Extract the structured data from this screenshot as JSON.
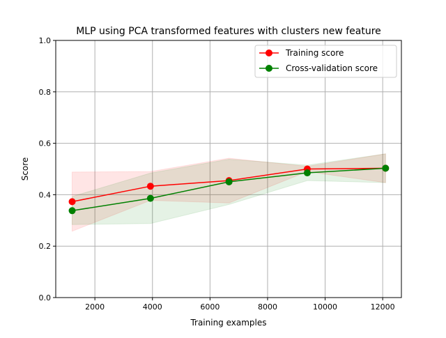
{
  "chart_data": {
    "type": "line",
    "title": "MLP using PCA transformed features with clusters new feature",
    "xlabel": "Training examples",
    "ylabel": "Score",
    "xlim": [
      640,
      12650
    ],
    "ylim": [
      0.0,
      1.0
    ],
    "xticks": [
      2000,
      4000,
      6000,
      8000,
      10000,
      12000
    ],
    "xtick_labels": [
      "2000",
      "4000",
      "6000",
      "8000",
      "10000",
      "12000"
    ],
    "yticks": [
      0.0,
      0.2,
      0.4,
      0.6,
      0.8,
      1.0
    ],
    "ytick_labels": [
      "0.0",
      "0.2",
      "0.4",
      "0.6",
      "0.8",
      "1.0"
    ],
    "grid": true,
    "legend_position": "top-right",
    "x": [
      1210,
      3930,
      6660,
      9380,
      12100
    ],
    "series": [
      {
        "name": "Training score",
        "color": "#ff0000",
        "values": [
          0.373,
          0.433,
          0.455,
          0.5,
          0.503
        ],
        "band_lower": [
          0.258,
          0.378,
          0.368,
          0.49,
          0.447
        ],
        "band_upper": [
          0.488,
          0.49,
          0.542,
          0.51,
          0.559
        ]
      },
      {
        "name": "Cross-validation score",
        "color": "#008000",
        "values": [
          0.338,
          0.386,
          0.45,
          0.485,
          0.503
        ],
        "band_lower": [
          0.284,
          0.288,
          0.362,
          0.455,
          0.447
        ],
        "band_upper": [
          0.393,
          0.484,
          0.538,
          0.515,
          0.559
        ]
      }
    ]
  }
}
